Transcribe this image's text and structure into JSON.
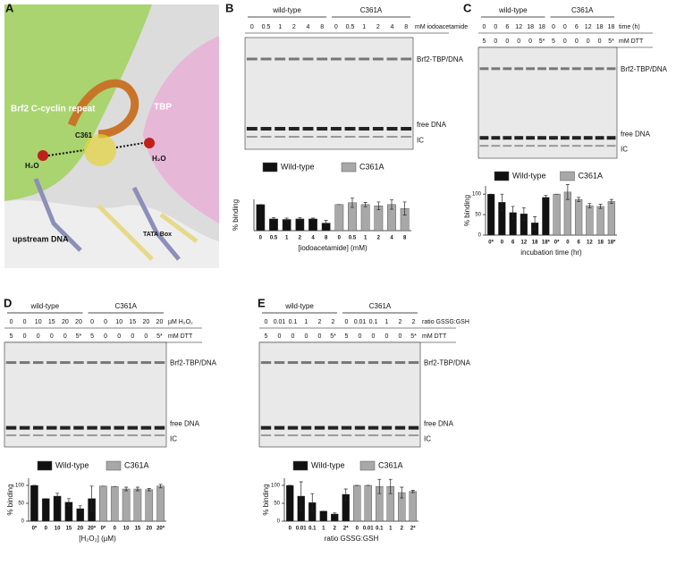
{
  "panels": [
    {
      "letter": "A",
      "texts": [
        "Brf2 C-cyclin repeat",
        "TBP",
        "C361",
        "H₂O",
        "H₂O",
        "upstream DNA",
        "TATA Box"
      ]
    },
    {
      "letter": "B",
      "groups": [
        "wild-type",
        "C361A"
      ],
      "lanes": [
        "0",
        "0.5",
        "1",
        "2",
        "4",
        "8",
        "0",
        "0.5",
        "1",
        "2",
        "4",
        "8"
      ],
      "lanes_unit": "mM iodoacetamide",
      "bands": [
        "Brf2-TBP/DNA",
        "free DNA",
        "IC"
      ]
    },
    {
      "letter": "C",
      "groups": [
        "wild-type",
        "C361A"
      ],
      "lanes": [
        "0",
        "0",
        "6",
        "12",
        "18",
        "18",
        "0",
        "0",
        "6",
        "12",
        "18",
        "18"
      ],
      "lanes_unit": "time (h)",
      "lanes2": [
        "5",
        "0",
        "0",
        "0",
        "0",
        "5*",
        "5",
        "0",
        "0",
        "0",
        "0",
        "5*"
      ],
      "lanes2_unit": "mM DTT",
      "bands": [
        "Brf2-TBP/DNA",
        "free DNA",
        "IC"
      ]
    },
    {
      "letter": "D",
      "groups": [
        "wild-type",
        "C361A"
      ],
      "lanes": [
        "0",
        "0",
        "10",
        "15",
        "20",
        "20",
        "0",
        "0",
        "10",
        "15",
        "20",
        "20"
      ],
      "lanes_unit": "µM H₂O₂",
      "lanes2": [
        "5",
        "0",
        "0",
        "0",
        "0",
        "5*",
        "5",
        "0",
        "0",
        "0",
        "0",
        "5*"
      ],
      "lanes2_unit": "mM DTT",
      "bands": [
        "Brf2-TBP/DNA",
        "free DNA",
        "IC"
      ]
    },
    {
      "letter": "E",
      "groups": [
        "wild-type",
        "C361A"
      ],
      "lanes": [
        "0",
        "0.01",
        "0.1",
        "1",
        "2",
        "2",
        "0",
        "0.01",
        "0.1",
        "1",
        "2",
        "2"
      ],
      "lanes_unit": "ratio GSSG:GSH",
      "lanes2": [
        "5",
        "0",
        "0",
        "0",
        "0",
        "5*",
        "5",
        "0",
        "0",
        "0",
        "0",
        "5*"
      ],
      "lanes2_unit": "mM DTT",
      "bands": [
        "Brf2-TBP/DNA",
        "free DNA",
        "IC"
      ]
    }
  ],
  "chart_data": [
    {
      "type": "bar",
      "y_label": "% binding",
      "x_label": "[iodoacetamide] (mM)",
      "ylim": [
        0,
        120
      ],
      "categories": [
        "0",
        "0.5",
        "1",
        "2",
        "4",
        "8",
        "0",
        "0.5",
        "1",
        "2",
        "4",
        "8"
      ],
      "series": [
        {
          "name": "Wild-type",
          "color": "#111111",
          "values": [
            100,
            45,
            43,
            45,
            45,
            29,
            null,
            null,
            null,
            null,
            null,
            null
          ],
          "errors": [
            0,
            5,
            5,
            5,
            3,
            10,
            null,
            null,
            null,
            null,
            null,
            null
          ]
        },
        {
          "name": "C361A",
          "color": "#a8a8a8",
          "values": [
            null,
            null,
            null,
            null,
            null,
            null,
            100,
            107,
            100,
            95,
            100,
            85
          ],
          "errors": [
            null,
            null,
            null,
            null,
            null,
            null,
            0,
            18,
            8,
            15,
            18,
            25
          ]
        }
      ]
    },
    {
      "type": "bar",
      "y_label": "% binding",
      "x_label": "incubation time (hr)",
      "ylim": [
        0,
        120
      ],
      "yticks": [
        0,
        50,
        100
      ],
      "categories": [
        "0*",
        "0",
        "6",
        "12",
        "18",
        "18*",
        "0*",
        "0",
        "6",
        "12",
        "18",
        "18*"
      ],
      "series": [
        {
          "name": "Wild-type",
          "color": "#111111",
          "values": [
            100,
            80,
            55,
            52,
            30,
            92,
            null,
            null,
            null,
            null,
            null,
            null
          ],
          "errors": [
            0,
            20,
            15,
            15,
            15,
            5,
            null,
            null,
            null,
            null,
            null,
            null
          ]
        },
        {
          "name": "C361A",
          "color": "#a8a8a8",
          "values": [
            null,
            null,
            null,
            null,
            null,
            null,
            100,
            105,
            87,
            72,
            70,
            82
          ],
          "errors": [
            null,
            null,
            null,
            null,
            null,
            null,
            0,
            18,
            5,
            5,
            5,
            5
          ]
        }
      ]
    },
    {
      "type": "bar",
      "y_label": "% binding",
      "x_label": "[H₂O₂] (µM)",
      "ylim": [
        0,
        120
      ],
      "yticks": [
        0,
        50,
        100
      ],
      "categories": [
        "0*",
        "0",
        "10",
        "15",
        "20",
        "20*",
        "0*",
        "0",
        "10",
        "15",
        "20",
        "20*"
      ],
      "series": [
        {
          "name": "Wild-type",
          "color": "#111111",
          "values": [
            100,
            63,
            70,
            53,
            35,
            63,
            null,
            null,
            null,
            null,
            null,
            null
          ],
          "errors": [
            0,
            0,
            8,
            10,
            8,
            35,
            null,
            null,
            null,
            null,
            null,
            null
          ]
        },
        {
          "name": "C361A",
          "color": "#a8a8a8",
          "values": [
            null,
            null,
            null,
            null,
            null,
            null,
            98,
            97,
            90,
            90,
            88,
            98
          ],
          "errors": [
            null,
            null,
            null,
            null,
            null,
            null,
            0,
            0,
            5,
            5,
            3,
            5
          ]
        }
      ]
    },
    {
      "type": "bar",
      "y_label": "% binding",
      "x_label": "ratio GSSG:GSH",
      "ylim": [
        0,
        120
      ],
      "yticks": [
        0,
        50,
        100
      ],
      "categories": [
        "0",
        "0.01",
        "0.1",
        "1",
        "2",
        "2*",
        "0",
        "0.01",
        "0.1",
        "1",
        "2",
        "2*"
      ],
      "series": [
        {
          "name": "Wild-type",
          "color": "#111111",
          "values": [
            100,
            70,
            52,
            28,
            20,
            75,
            null,
            null,
            null,
            null,
            null,
            null
          ],
          "errors": [
            0,
            40,
            25,
            0,
            3,
            15,
            null,
            null,
            null,
            null,
            null,
            null
          ]
        },
        {
          "name": "C361A",
          "color": "#a8a8a8",
          "values": [
            null,
            null,
            null,
            null,
            null,
            null,
            100,
            100,
            97,
            97,
            80,
            83
          ],
          "errors": [
            null,
            null,
            null,
            null,
            null,
            null,
            0,
            0,
            20,
            20,
            15,
            3
          ]
        }
      ]
    }
  ]
}
